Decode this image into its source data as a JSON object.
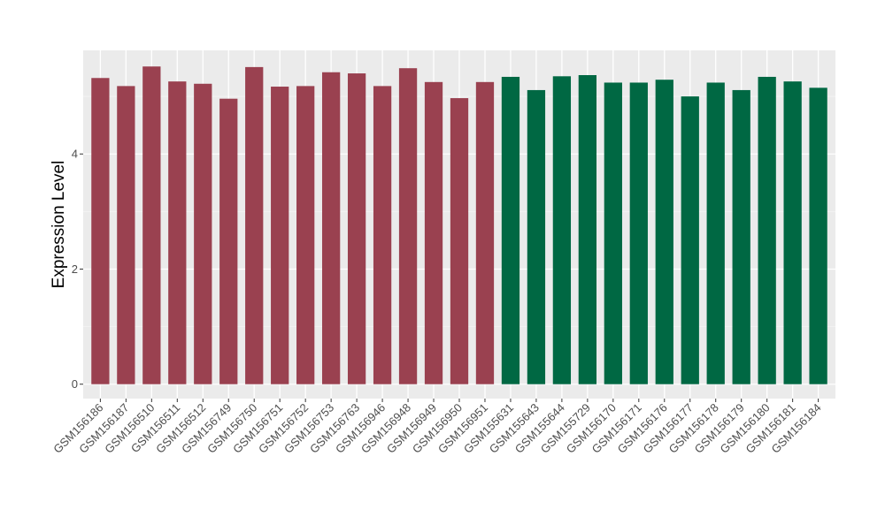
{
  "chart_data": {
    "type": "bar",
    "ylabel": "Expression Level",
    "xlabel": "",
    "ylim": [
      -0.25,
      5.8
    ],
    "y_ticks": [
      0,
      2,
      4
    ],
    "grid": true,
    "legend": "none",
    "categories": [
      "GSM156186",
      "GSM156187",
      "GSM156510",
      "GSM156511",
      "GSM156512",
      "GSM156749",
      "GSM156750",
      "GSM156751",
      "GSM156752",
      "GSM156753",
      "GSM156763",
      "GSM156946",
      "GSM156948",
      "GSM156949",
      "GSM156950",
      "GSM156951",
      "GSM155631",
      "GSM155643",
      "GSM155644",
      "GSM155729",
      "GSM156170",
      "GSM156171",
      "GSM156176",
      "GSM156177",
      "GSM156178",
      "GSM156179",
      "GSM156180",
      "GSM156181",
      "GSM156184"
    ],
    "values": [
      5.32,
      5.18,
      5.52,
      5.26,
      5.22,
      4.96,
      5.51,
      5.17,
      5.18,
      5.42,
      5.4,
      5.18,
      5.49,
      5.25,
      4.97,
      5.25,
      5.34,
      5.11,
      5.35,
      5.37,
      5.24,
      5.24,
      5.29,
      5.0,
      5.24,
      5.11,
      5.34,
      5.26,
      5.15
    ],
    "group_boundary_index": 16,
    "colors": {
      "group1": "#9A4150",
      "group2": "#006843",
      "panel_bg": "#EBEBEB",
      "grid": "#FFFFFF",
      "text": "#333333"
    }
  }
}
